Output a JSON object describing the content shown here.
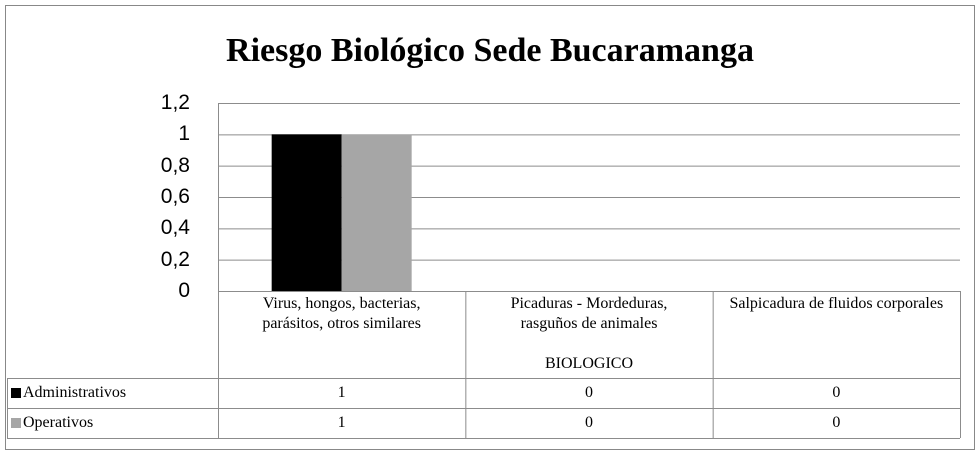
{
  "chart_data": {
    "type": "bar",
    "title": "Riesgo Biológico Sede Bucaramanga",
    "categories": [
      "Virus, hongos, bacterias, parásitos, otros similares",
      "Picaduras - Mordeduras, rasguños de animales",
      "Salpicadura de fluidos corporales"
    ],
    "group_label": "BIOLOGICO",
    "series": [
      {
        "name": "Administrativos",
        "color": "#000000",
        "values": [
          1,
          0,
          0
        ]
      },
      {
        "name": "Operativos",
        "color": "#a6a6a6",
        "values": [
          1,
          0,
          0
        ]
      }
    ],
    "ylim": [
      0,
      1.2
    ],
    "yticks": [
      0,
      {
        "value": 0.2,
        "label": "0,2"
      },
      {
        "value": 0.4,
        "label": "0,4"
      },
      {
        "value": 0.6,
        "label": "0,6"
      },
      {
        "value": 0.8,
        "label": "0,8"
      },
      1,
      {
        "value": 1.2,
        "label": "1,2"
      }
    ],
    "grid": true,
    "data_table": true
  }
}
